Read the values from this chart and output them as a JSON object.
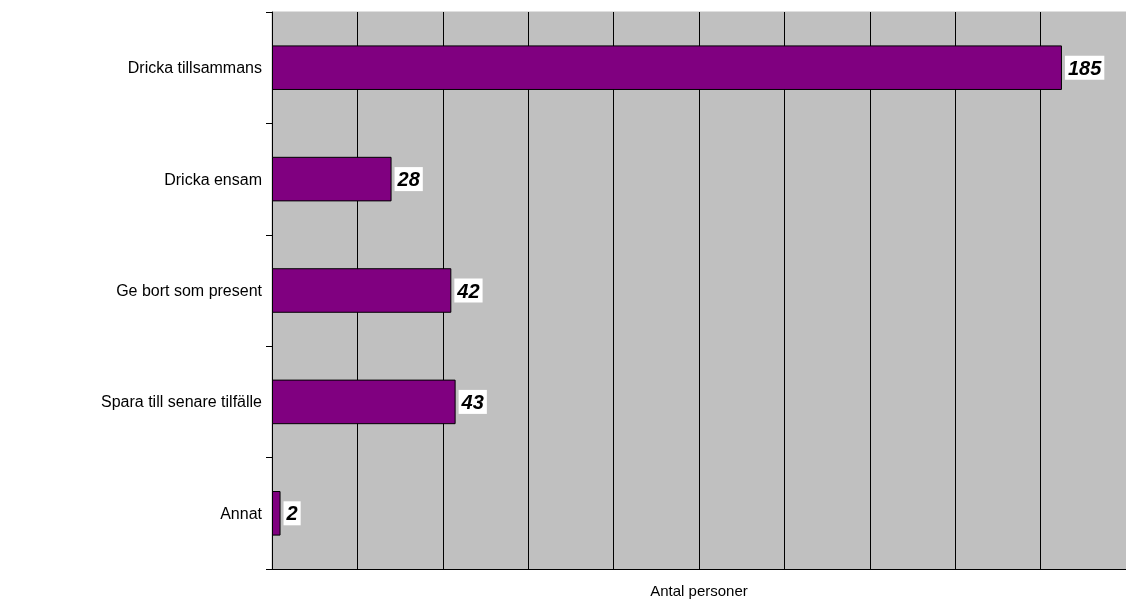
{
  "chart_data": {
    "type": "bar",
    "orientation": "horizontal",
    "categories": [
      "Dricka tillsammans",
      "Dricka ensam",
      "Ge bort som present",
      "Spara till senare tilfälle",
      "Annat"
    ],
    "values": [
      185,
      28,
      42,
      43,
      2
    ],
    "color": "#800080",
    "xlabel": "Antal personer",
    "xlim": [
      0,
      200
    ],
    "xticks": [
      0,
      20,
      40,
      60,
      80,
      100,
      120,
      140,
      160,
      180,
      200
    ],
    "tick_labels": "y",
    "grid": "x",
    "data_labels": true
  }
}
